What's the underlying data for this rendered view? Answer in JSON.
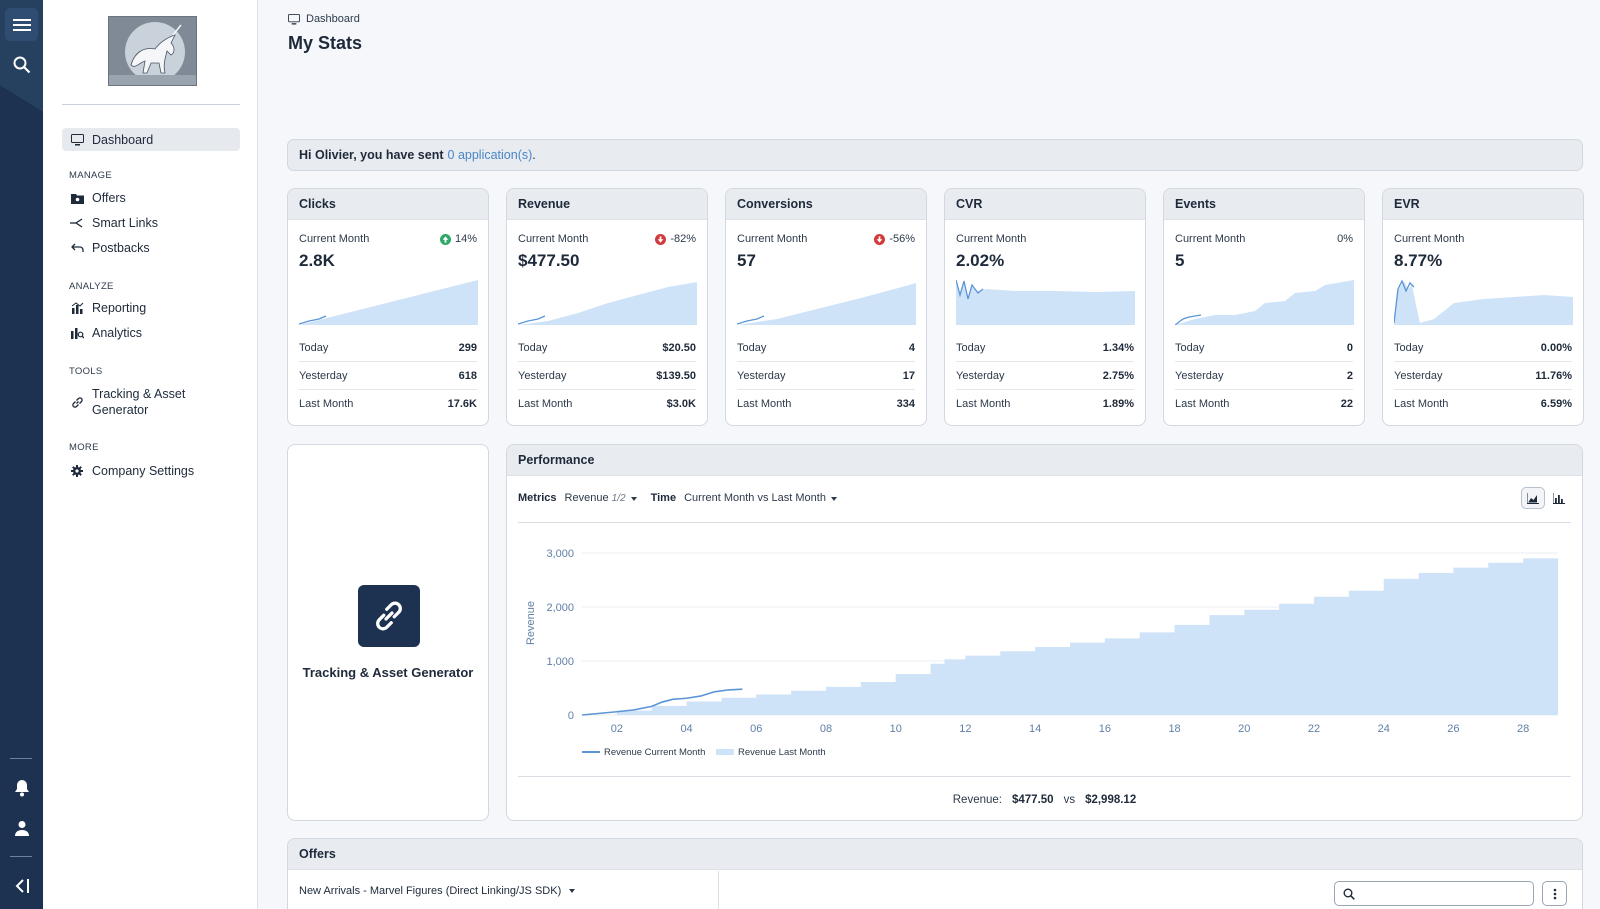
{
  "rail": {
    "icons": [
      "menu-icon",
      "search-icon",
      "bell-icon",
      "user-icon",
      "collapse-icon"
    ]
  },
  "sidebar": {
    "nav": [
      {
        "label": "Dashboard",
        "icon": "monitor-icon"
      },
      {
        "group": "MANAGE"
      },
      {
        "label": "Offers",
        "icon": "folder-star-icon"
      },
      {
        "label": "Smart Links",
        "icon": "split-arrows-icon"
      },
      {
        "label": "Postbacks",
        "icon": "arrow-left-icon"
      },
      {
        "group": "ANALYZE"
      },
      {
        "label": "Reporting",
        "icon": "chart-icon"
      },
      {
        "label": "Analytics",
        "icon": "analytics-icon"
      },
      {
        "group": "TOOLS"
      },
      {
        "label": "Tracking & Asset Generator",
        "label_line1": "Tracking & Asset",
        "label_line2": "Generator",
        "icon": "link-icon"
      },
      {
        "group": "MORE"
      },
      {
        "label": "Company Settings",
        "icon": "gear-icon"
      }
    ]
  },
  "header": {
    "breadcrumb": "Dashboard",
    "title": "My Stats"
  },
  "greeting": {
    "prefix": "Hi Olivier, you have sent",
    "link": "0 application(s)",
    "suffix": "."
  },
  "stat_cards": [
    {
      "title": "Clicks",
      "period": "Current Month",
      "change": "14%",
      "direction": "up",
      "value": "2.8K",
      "rows": [
        {
          "label": "Today",
          "value": "299"
        },
        {
          "label": "Yesterday",
          "value": "618"
        },
        {
          "label": "Last Month",
          "value": "17.6K"
        }
      ]
    },
    {
      "title": "Revenue",
      "period": "Current Month",
      "change": "-82%",
      "direction": "down",
      "value": "$477.50",
      "rows": [
        {
          "label": "Today",
          "value": "$20.50"
        },
        {
          "label": "Yesterday",
          "value": "$139.50"
        },
        {
          "label": "Last Month",
          "value": "$3.0K"
        }
      ]
    },
    {
      "title": "Conversions",
      "period": "Current Month",
      "change": "-56%",
      "direction": "down",
      "value": "57",
      "rows": [
        {
          "label": "Today",
          "value": "4"
        },
        {
          "label": "Yesterday",
          "value": "17"
        },
        {
          "label": "Last Month",
          "value": "334"
        }
      ]
    },
    {
      "title": "CVR",
      "period": "Current Month",
      "change": "",
      "direction": "none",
      "value": "2.02%",
      "rows": [
        {
          "label": "Today",
          "value": "1.34%"
        },
        {
          "label": "Yesterday",
          "value": "2.75%"
        },
        {
          "label": "Last Month",
          "value": "1.89%"
        }
      ]
    },
    {
      "title": "Events",
      "period": "Current Month",
      "change": "0%",
      "direction": "flat",
      "value": "5",
      "rows": [
        {
          "label": "Today",
          "value": "0"
        },
        {
          "label": "Yesterday",
          "value": "2"
        },
        {
          "label": "Last Month",
          "value": "22"
        }
      ]
    },
    {
      "title": "EVR",
      "period": "Current Month",
      "change": "",
      "direction": "none",
      "value": "8.77%",
      "rows": [
        {
          "label": "Today",
          "value": "0.00%"
        },
        {
          "label": "Yesterday",
          "value": "11.76%"
        },
        {
          "label": "Last Month",
          "value": "6.59%"
        }
      ]
    }
  ],
  "tool_card": {
    "label": "Tracking & Asset Generator",
    "icon": "link-icon"
  },
  "performance": {
    "title": "Performance",
    "metrics_label": "Metrics",
    "metrics_value": "Revenue",
    "metrics_count": "1/2",
    "time_label": "Time",
    "time_value": "Current Month vs Last Month",
    "chart_type_buttons": [
      "area-chart-icon",
      "bar-chart-icon"
    ],
    "summary_label": "Revenue:",
    "summary_current": "$477.50",
    "summary_vs": "vs",
    "summary_last": "$2,998.12"
  },
  "chart_data": {
    "type": "area",
    "ylabel": "Revenue",
    "ylim": [
      0,
      3000
    ],
    "yticks": [
      "0",
      "1,000",
      "2,000",
      "3,000"
    ],
    "xlim": [
      1,
      29
    ],
    "xticks": [
      "02",
      "04",
      "06",
      "08",
      "10",
      "12",
      "14",
      "16",
      "18",
      "20",
      "22",
      "24",
      "26",
      "28"
    ],
    "legend_position": "bottom-left",
    "series": [
      {
        "name": "Revenue Current Month",
        "style": "line",
        "color": "#5b95d6",
        "x": [
          1,
          1.5,
          2,
          2.5,
          3,
          3.3,
          3.6,
          4,
          4.4,
          4.8,
          5.2,
          5.6
        ],
        "y": [
          0,
          30,
          60,
          95,
          160,
          240,
          290,
          310,
          350,
          430,
          465,
          478
        ]
      },
      {
        "name": "Revenue Last Month",
        "style": "area",
        "color": "#cfe3f8",
        "x": [
          1,
          2,
          3,
          4,
          5,
          6,
          7,
          8,
          9,
          10,
          11,
          11.4,
          12,
          13,
          14,
          15,
          16,
          17,
          18,
          19,
          20,
          21,
          22,
          23,
          24,
          25,
          26,
          27,
          28,
          29
        ],
        "y": [
          0,
          80,
          170,
          250,
          320,
          380,
          450,
          520,
          610,
          760,
          950,
          1030,
          1100,
          1180,
          1260,
          1340,
          1420,
          1530,
          1670,
          1850,
          1950,
          2060,
          2190,
          2300,
          2520,
          2630,
          2730,
          2820,
          2900,
          2998
        ]
      }
    ]
  },
  "spark_colors": {
    "line": "#5b95d6",
    "area": "#cfe3f8"
  },
  "status_colors": {
    "up": "#2fa866",
    "down": "#d23b3b"
  },
  "offers": {
    "title": "Offers",
    "selected_offer": "New Arrivals - Marvel Figures (Direct Linking/JS SDK)",
    "search_placeholder": ""
  }
}
